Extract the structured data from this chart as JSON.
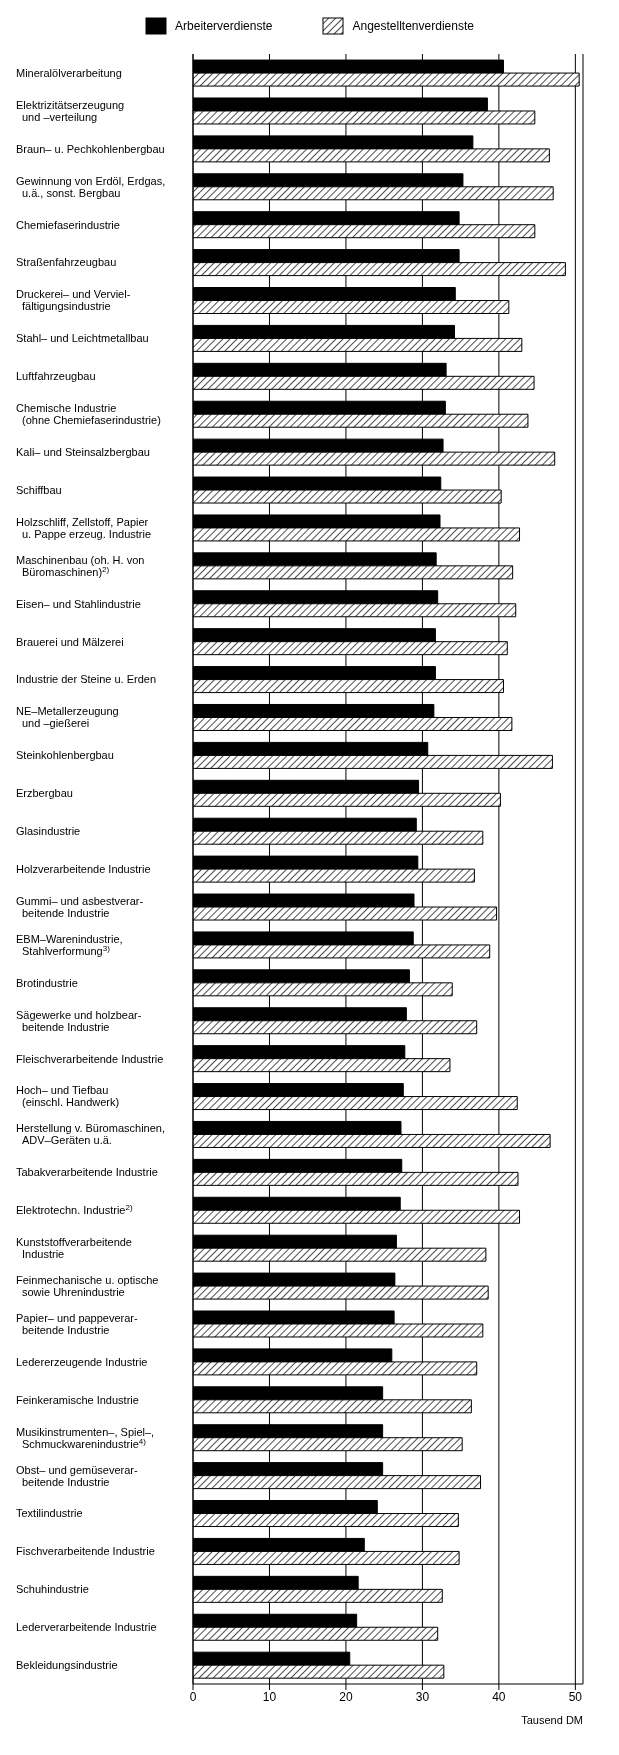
{
  "chart_data": {
    "type": "bar",
    "orientation": "horizontal",
    "xlabel": "Tausend DM",
    "legend": "top",
    "grid": "x",
    "xlim": [
      0,
      51
    ],
    "xticks": [
      0,
      10,
      20,
      30,
      40,
      50
    ],
    "categories": [
      "Mineralölverarbeitung",
      "Elektrizitätserzeugung\nund –verteilung",
      "Braun– u. Pechkohlenbergbau",
      "Gewinnung von Erdöl, Erdgas,\nu.ä., sonst. Bergbau",
      "Chemiefaserindustrie",
      "Straßenfahrzeugbau",
      "Druckerei– und Verviel-\nfältigungsindustrie",
      "Stahl– und Leichtmetallbau",
      "Luftfahrzeugbau",
      "Chemische Industrie\n(ohne Chemiefaserindustrie)",
      "Kali– und Steinsalzbergbau",
      "Schiffbau",
      "Holzschliff, Zellstoff, Papier\nu. Pappe erzeug. Industrie",
      "Maschinenbau (oh. H. von\nBüromaschinen)$^{2)}$",
      "Eisen– und Stahlindustrie",
      "Brauerei und Mälzerei",
      "Industrie der Steine u. Erden",
      "NE–Metallerzeugung\nund –gießerei",
      "Steinkohlenbergbau",
      "Erzbergbau",
      "Glasindustrie",
      "Holzverarbeitende Industrie",
      "Gummi– und asbestverar-\nbeitende Industrie",
      "EBM–Warenindustrie,\nStahlverformung$^{3)}$",
      "Brotindustrie",
      "Sägewerke und holzbear-\nbeitende Industrie",
      "Fleischverarbeitende Industrie",
      "Hoch– und Tiefbau\n(einschl. Handwerk)",
      "Herstellung v. Büromaschinen,\nADV–Geräten u.ä.",
      "Tabakverarbeitende Industrie",
      "Elektrotechn. Industrie$^{2)}$",
      "Kunststoffverarbeitende\nIndustrie",
      "Feinmechanische u. optische\nsowie Uhrenindustrie",
      "Papier– und pappeverar-\nbeitende Industrie",
      "Ledererzeugende Industrie",
      "Feinkeramische Industrie",
      "Musikinstrumenten–, Spiel–,\nSchmuckwarenindustrie$^{4)}$",
      "Obst– und gemüseverar-\nbeitende Industrie",
      "Textilindustrie",
      "Fischverarbeitende Industrie",
      "Schuhindustrie",
      "Lederverarbeitende Industrie",
      "Bekleidungsindustrie"
    ],
    "series": [
      {
        "name": "Arbeiterverdienste",
        "color": "#000000",
        "values": [
          40.6,
          38.5,
          36.6,
          35.3,
          34.8,
          34.8,
          34.3,
          34.2,
          33.1,
          33.0,
          32.7,
          32.4,
          32.3,
          31.8,
          32.0,
          31.7,
          31.7,
          31.5,
          30.7,
          29.5,
          29.2,
          29.4,
          28.9,
          28.8,
          28.3,
          27.9,
          27.7,
          27.5,
          27.2,
          27.3,
          27.1,
          26.6,
          26.4,
          26.3,
          26.0,
          24.8,
          24.8,
          24.8,
          24.1,
          22.4,
          21.6,
          21.4,
          20.5
        ]
      },
      {
        "name": "Angestelltenverdienste",
        "color": "#000000",
        "values": [
          50.5,
          44.7,
          46.6,
          47.1,
          44.7,
          48.7,
          41.3,
          43.0,
          44.6,
          43.8,
          47.3,
          40.3,
          42.7,
          41.8,
          42.2,
          41.1,
          40.6,
          41.7,
          47.0,
          40.2,
          37.9,
          36.8,
          39.7,
          38.8,
          33.9,
          37.1,
          33.6,
          42.4,
          46.7,
          42.5,
          42.7,
          38.3,
          38.6,
          37.9,
          37.1,
          36.4,
          35.2,
          37.6,
          34.7,
          34.8,
          32.6,
          32.0,
          32.8
        ]
      }
    ]
  }
}
